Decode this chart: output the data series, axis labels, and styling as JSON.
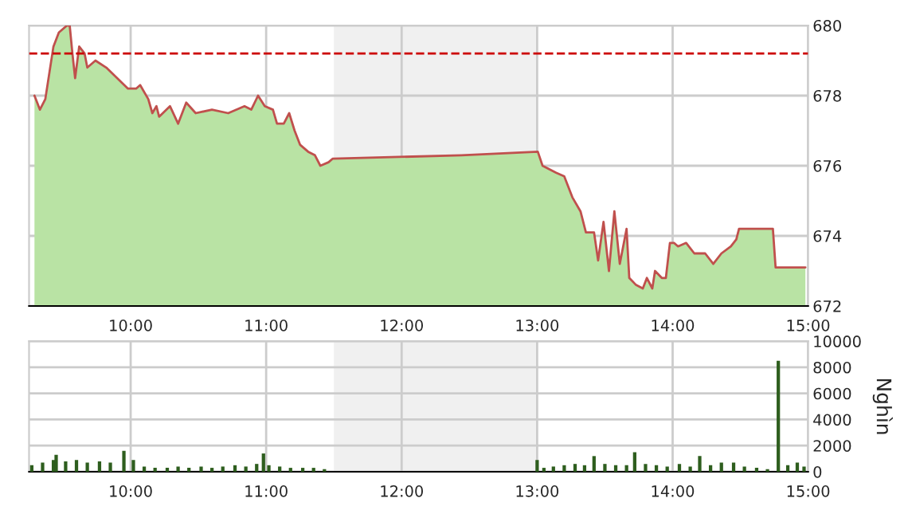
{
  "chart_data": [
    {
      "type": "area",
      "x": [
        9.29,
        9.33,
        9.37,
        9.43,
        9.47,
        9.53,
        9.55,
        9.57,
        9.59,
        9.62,
        9.66,
        9.68,
        9.74,
        9.82,
        9.9,
        9.98,
        10.04,
        10.07,
        10.13,
        10.16,
        10.19,
        10.21,
        10.29,
        10.35,
        10.41,
        10.48,
        10.6,
        10.72,
        10.84,
        10.89,
        10.94,
        10.99,
        11.05,
        11.08,
        11.13,
        11.17,
        11.21,
        11.25,
        11.31,
        11.36,
        11.4,
        11.46,
        11.49,
        12.44,
        13.005,
        13.04,
        13.14,
        13.2,
        13.26,
        13.32,
        13.36,
        13.42,
        13.45,
        13.49,
        13.53,
        13.57,
        13.61,
        13.66,
        13.68,
        13.73,
        13.78,
        13.81,
        13.85,
        13.87,
        13.92,
        13.95,
        13.98,
        14.01,
        14.04,
        14.1,
        14.16,
        14.24,
        14.3,
        14.36,
        14.43,
        14.47,
        14.49,
        14.74,
        14.76,
        14.98
      ],
      "series": [
        {
          "type": "area",
          "color": "#b9e3a4",
          "values": [
            678.0,
            677.6,
            677.9,
            679.4,
            679.8,
            680.0,
            680.0,
            679.2,
            678.5,
            679.4,
            679.2,
            678.8,
            679.0,
            678.8,
            678.5,
            678.2,
            678.2,
            678.3,
            677.9,
            677.5,
            677.7,
            677.4,
            677.7,
            677.2,
            677.8,
            677.5,
            677.6,
            677.5,
            677.7,
            677.6,
            678.0,
            677.7,
            677.6,
            677.2,
            677.2,
            677.5,
            677.0,
            676.6,
            676.4,
            676.3,
            676.0,
            676.1,
            676.2,
            676.3,
            676.4,
            676.0,
            675.8,
            675.7,
            675.1,
            674.7,
            674.1,
            674.1,
            673.3,
            674.4,
            673.0,
            674.7,
            673.2,
            674.2,
            672.8,
            672.6,
            672.5,
            672.8,
            672.5,
            673.0,
            672.8,
            672.8,
            673.8,
            673.8,
            673.7,
            673.8,
            673.5,
            673.5,
            673.2,
            673.5,
            673.7,
            673.9,
            674.2,
            674.2,
            673.1,
            673.1
          ]
        },
        {
          "type": "line",
          "color": "#c0504d",
          "values": [
            678.0,
            677.6,
            677.9,
            679.4,
            679.8,
            680.0,
            680.0,
            679.2,
            678.5,
            679.4,
            679.2,
            678.8,
            679.0,
            678.8,
            678.5,
            678.2,
            678.2,
            678.3,
            677.9,
            677.5,
            677.7,
            677.4,
            677.7,
            677.2,
            677.8,
            677.5,
            677.6,
            677.5,
            677.7,
            677.6,
            678.0,
            677.7,
            677.6,
            677.2,
            677.2,
            677.5,
            677.0,
            676.6,
            676.4,
            676.3,
            676.0,
            676.1,
            676.2,
            676.3,
            676.4,
            676.0,
            675.8,
            675.7,
            675.1,
            674.7,
            674.1,
            674.1,
            673.3,
            674.4,
            673.0,
            674.7,
            673.2,
            674.2,
            672.8,
            672.6,
            672.5,
            672.8,
            672.5,
            673.0,
            672.8,
            672.8,
            673.8,
            673.8,
            673.7,
            673.8,
            673.5,
            673.5,
            673.2,
            673.5,
            673.7,
            673.9,
            674.2,
            674.2,
            673.1,
            673.1
          ]
        }
      ],
      "xlim": [
        9.25,
        15
      ],
      "xticks": [
        {
          "value": 10,
          "label": "10:00"
        },
        {
          "value": 11,
          "label": "11:00"
        },
        {
          "value": 12,
          "label": "12:00"
        },
        {
          "value": 13,
          "label": "13:00"
        },
        {
          "value": 14,
          "label": "14:00"
        },
        {
          "value": 15,
          "label": "15:00"
        }
      ],
      "ylim": [
        672,
        680
      ],
      "yticks": [
        672,
        674,
        676,
        678,
        680
      ],
      "grid": true,
      "ref_lines": [
        {
          "axis": "y",
          "value": 679.2,
          "color": "#cc0000",
          "line_style": "dashed"
        }
      ],
      "bands": [
        {
          "axis": "x",
          "from": 11.5,
          "to": 13,
          "color": "#f0f0f0"
        }
      ]
    },
    {
      "type": "bar",
      "x": [
        9.27,
        9.35,
        9.43,
        9.45,
        9.52,
        9.6,
        9.68,
        9.77,
        9.85,
        9.95,
        10.02,
        10.1,
        10.18,
        10.27,
        10.35,
        10.43,
        10.52,
        10.6,
        10.68,
        10.77,
        10.85,
        10.93,
        10.98,
        11.02,
        11.1,
        11.18,
        11.27,
        11.35,
        11.43,
        13.0,
        13.05,
        13.12,
        13.2,
        13.28,
        13.35,
        13.42,
        13.5,
        13.58,
        13.66,
        13.72,
        13.8,
        13.88,
        13.96,
        14.05,
        14.13,
        14.2,
        14.28,
        14.36,
        14.45,
        14.53,
        14.62,
        14.7,
        14.78,
        14.85,
        14.92,
        14.97
      ],
      "series": [
        {
          "color": "#2e5e1e",
          "values": [
            500,
            700,
            900,
            1300,
            800,
            900,
            700,
            800,
            700,
            1600,
            900,
            400,
            300,
            300,
            400,
            300,
            400,
            300,
            400,
            500,
            400,
            600,
            1400,
            500,
            400,
            300,
            300,
            300,
            200,
            900,
            300,
            400,
            500,
            600,
            500,
            1200,
            600,
            500,
            500,
            1500,
            600,
            500,
            400,
            600,
            400,
            1200,
            500,
            700,
            700,
            400,
            300,
            200,
            8500,
            500,
            700,
            400
          ]
        }
      ],
      "ylabel": "Nghìn",
      "xlim": [
        9.25,
        15
      ],
      "xticks": [
        {
          "value": 10,
          "label": "10:00"
        },
        {
          "value": 11,
          "label": "11:00"
        },
        {
          "value": 12,
          "label": "12:00"
        },
        {
          "value": 13,
          "label": "13:00"
        },
        {
          "value": 14,
          "label": "14:00"
        },
        {
          "value": 15,
          "label": "15:00"
        }
      ],
      "ylim": [
        0,
        10000
      ],
      "yticks": [
        0,
        2000,
        4000,
        6000,
        8000,
        10000
      ],
      "grid": true,
      "bands": [
        {
          "axis": "x",
          "from": 11.5,
          "to": 13,
          "color": "#f0f0f0"
        }
      ]
    }
  ]
}
